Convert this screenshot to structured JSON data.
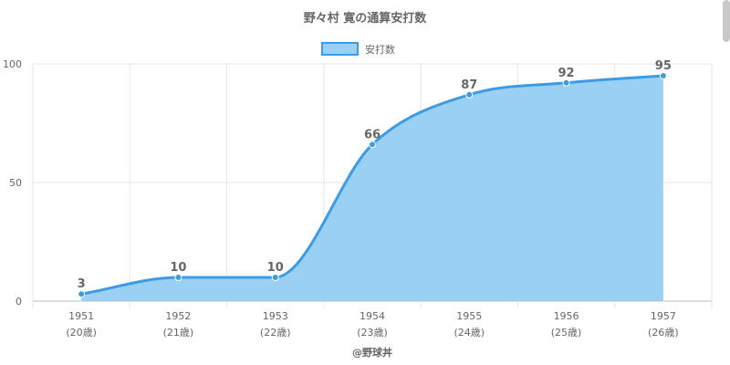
{
  "chart_data": {
    "type": "area",
    "title": "野々村 寛の通算安打数",
    "x": [
      "1951",
      "1952",
      "1953",
      "1954",
      "1955",
      "1956",
      "1957"
    ],
    "x_sub": [
      "(20歳)",
      "(21歳)",
      "(22歳)",
      "(23歳)",
      "(24歳)",
      "(25歳)",
      "(26歳)"
    ],
    "series": [
      {
        "name": "安打数",
        "values": [
          3,
          10,
          10,
          66,
          87,
          92,
          95
        ]
      }
    ],
    "ylim": [
      0,
      100
    ],
    "yticks": [
      0,
      50,
      100
    ],
    "grid": true,
    "legend": "top-center",
    "colors": {
      "line": "#3d9be6",
      "fill": "#9bd0f5",
      "grid": "#e6e6e6",
      "axis": "#bdbdbd"
    }
  },
  "footer": "@野球丼"
}
